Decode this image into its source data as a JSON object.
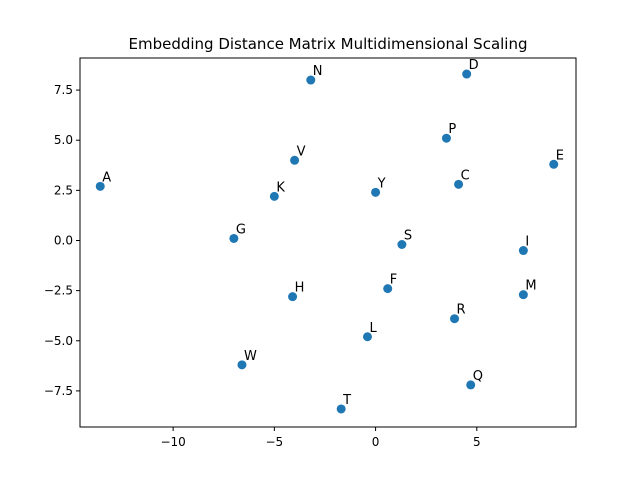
{
  "chart_data": {
    "type": "scatter",
    "title": "Embedding Distance Matrix Multidimensional Scaling",
    "xlabel": "",
    "ylabel": "",
    "xlim": [
      -14.6,
      9.9
    ],
    "ylim": [
      -9.3,
      9.1
    ],
    "grid": false,
    "legend": "none",
    "marker_color": "#1f77b4",
    "x_ticks": [
      -10,
      -5,
      0,
      5
    ],
    "x_tick_labels": [
      "−10",
      "−5",
      "0",
      "5"
    ],
    "y_ticks": [
      -7.5,
      -5.0,
      -2.5,
      0.0,
      2.5,
      5.0,
      7.5
    ],
    "y_tick_labels": [
      "−7.5",
      "−5.0",
      "−2.5",
      "0.0",
      "2.5",
      "5.0",
      "7.5"
    ],
    "points": [
      {
        "label": "A",
        "x": -13.6,
        "y": 2.7
      },
      {
        "label": "N",
        "x": -3.2,
        "y": 8.0
      },
      {
        "label": "D",
        "x": 4.5,
        "y": 8.3
      },
      {
        "label": "P",
        "x": 3.5,
        "y": 5.1
      },
      {
        "label": "V",
        "x": -4.0,
        "y": 4.0
      },
      {
        "label": "E",
        "x": 8.8,
        "y": 3.8
      },
      {
        "label": "K",
        "x": -5.0,
        "y": 2.2
      },
      {
        "label": "Y",
        "x": 0.0,
        "y": 2.4
      },
      {
        "label": "C",
        "x": 4.1,
        "y": 2.8
      },
      {
        "label": "G",
        "x": -7.0,
        "y": 0.1
      },
      {
        "label": "S",
        "x": 1.3,
        "y": -0.2
      },
      {
        "label": "I",
        "x": 7.3,
        "y": -0.5
      },
      {
        "label": "H",
        "x": -4.1,
        "y": -2.8
      },
      {
        "label": "F",
        "x": 0.6,
        "y": -2.4
      },
      {
        "label": "M",
        "x": 7.3,
        "y": -2.7
      },
      {
        "label": "R",
        "x": 3.9,
        "y": -3.9
      },
      {
        "label": "L",
        "x": -0.4,
        "y": -4.8
      },
      {
        "label": "W",
        "x": -6.6,
        "y": -6.2
      },
      {
        "label": "Q",
        "x": 4.7,
        "y": -7.2
      },
      {
        "label": "T",
        "x": -1.7,
        "y": -8.4
      }
    ]
  }
}
